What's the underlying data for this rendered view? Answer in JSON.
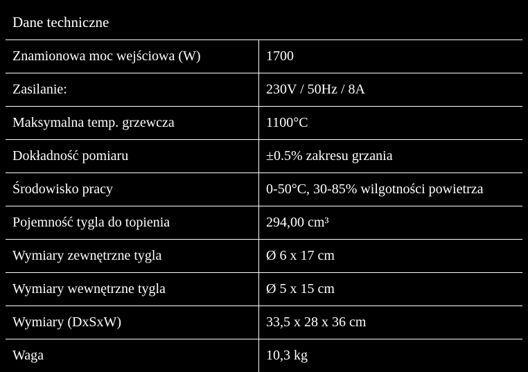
{
  "table": {
    "title": "Dane techniczne",
    "background_color": "#000000",
    "text_color": "#ffffff",
    "border_color": "#ffffff",
    "font_family": "Georgia, serif",
    "title_fontsize": 21,
    "cell_fontsize": 20,
    "rows": [
      {
        "label": "Znamionowa moc wejściowa (W)",
        "value": "1700"
      },
      {
        "label": "Zasilanie:",
        "value": "230V / 50Hz / 8A"
      },
      {
        "label": "Maksymalna temp. grzewcza",
        "value": "1100°C"
      },
      {
        "label": "Dokładność pomiaru",
        "value": "±0.5% zakresu grzania"
      },
      {
        "label": "Środowisko pracy",
        "value": "0-50°C, 30-85% wilgotności powietrza"
      },
      {
        "label": "Pojemność tygla do topienia",
        "value": "294,00 cm³"
      },
      {
        "label": "Wymiary zewnętrzne tygla",
        "value": "Ø 6 x 17 cm"
      },
      {
        "label": "Wymiary wewnętrzne tygla",
        "value": "Ø 5 x 15 cm"
      },
      {
        "label": "Wymiary (DxSxW)",
        "value": "33,5 x 28 x 36 cm"
      },
      {
        "label": "Waga",
        "value": "10,3 kg"
      }
    ]
  }
}
